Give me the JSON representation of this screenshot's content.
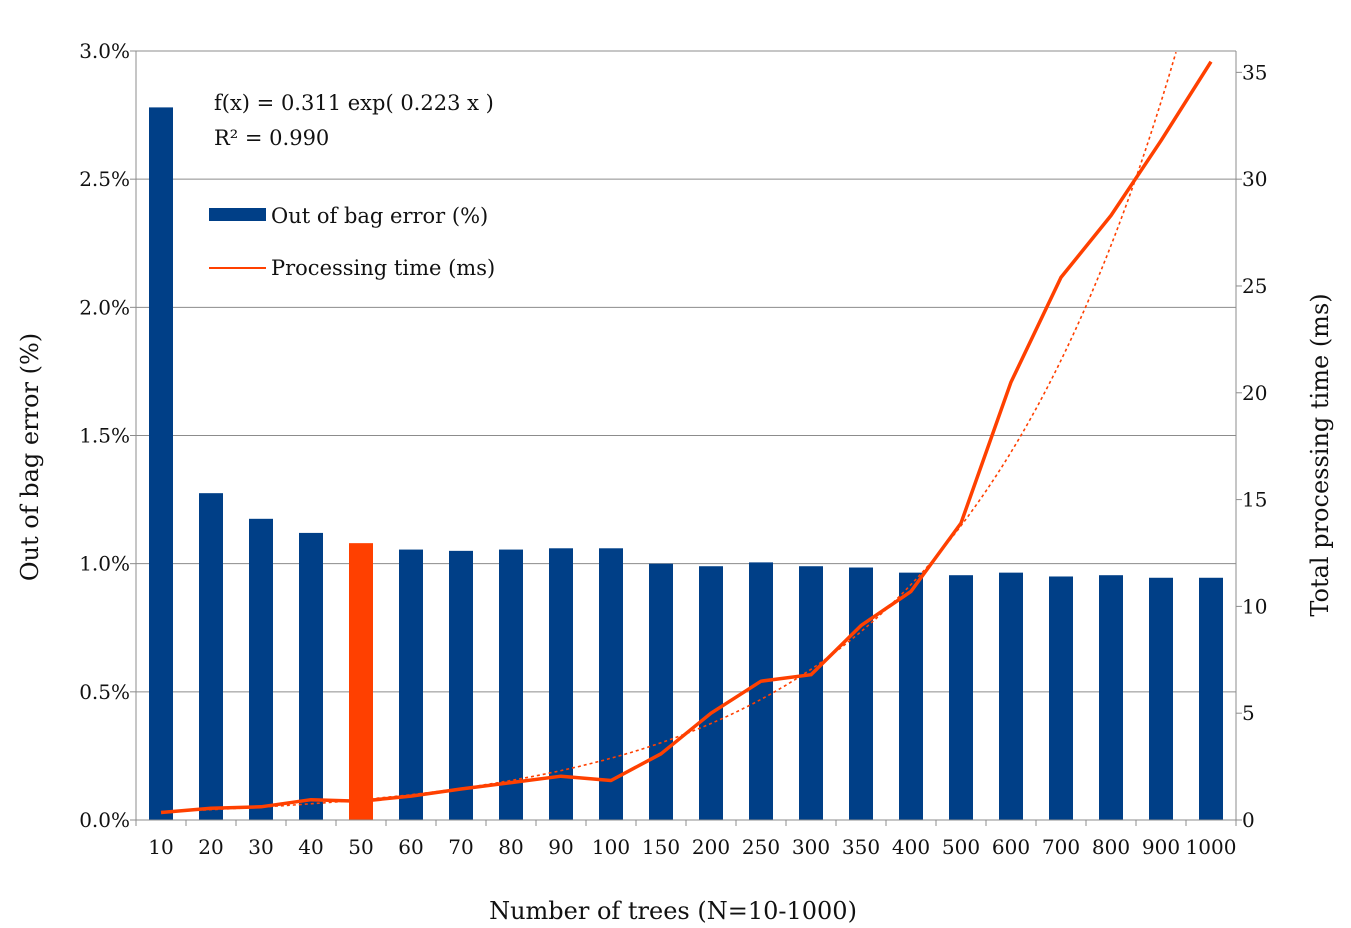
{
  "chart_data": {
    "type": "bar",
    "title": "",
    "xlabel": "Number of trees (N=10-1000)",
    "ylabel": "Out of bag error (%)",
    "y2label": "Total processing time (ms)",
    "categories": [
      "10",
      "20",
      "30",
      "40",
      "50",
      "60",
      "70",
      "80",
      "90",
      "100",
      "150",
      "200",
      "250",
      "300",
      "350",
      "400",
      "500",
      "600",
      "700",
      "800",
      "900",
      "1000"
    ],
    "ylim": [
      0,
      3.0
    ],
    "y2lim": [
      0,
      36
    ],
    "yticks": [
      "0.0%",
      "0.5%",
      "1.0%",
      "1.5%",
      "2.0%",
      "2.5%",
      "3.0%"
    ],
    "y2ticks": [
      "0",
      "5",
      "10",
      "15",
      "20",
      "25",
      "30",
      "35"
    ],
    "grid": true,
    "series": [
      {
        "name": "Out of bag error (%)",
        "kind": "bar",
        "axis": "left",
        "color": "#003f87",
        "highlight_color": "#ff4000",
        "highlight_category": "50",
        "values": [
          2.78,
          1.275,
          1.175,
          1.12,
          1.08,
          1.055,
          1.05,
          1.055,
          1.06,
          1.06,
          1.0,
          0.99,
          1.005,
          0.99,
          0.985,
          0.965,
          0.955,
          0.965,
          0.95,
          0.955,
          0.945,
          0.945
        ]
      },
      {
        "name": "Processing time (ms)",
        "kind": "line",
        "axis": "right",
        "color": "#ff4000",
        "values": [
          0.35,
          0.55,
          0.62,
          0.95,
          0.88,
          1.12,
          1.45,
          1.75,
          2.05,
          1.85,
          3.1,
          5.0,
          6.5,
          6.8,
          9.1,
          10.7,
          13.9,
          20.5,
          25.4,
          28.3,
          31.8,
          35.5
        ]
      }
    ],
    "trendline": {
      "type": "exponential",
      "series": "Processing time (ms)",
      "color": "#ff4000",
      "style": "dotted",
      "a": 0.311,
      "b": 0.223,
      "equation": "f(x) = 0.311 exp( 0.223 x )",
      "r2": "R² = 0.990"
    },
    "legend": {
      "position": "top-left",
      "entries": [
        "Out of bag error (%)",
        "Processing time (ms)"
      ]
    }
  }
}
